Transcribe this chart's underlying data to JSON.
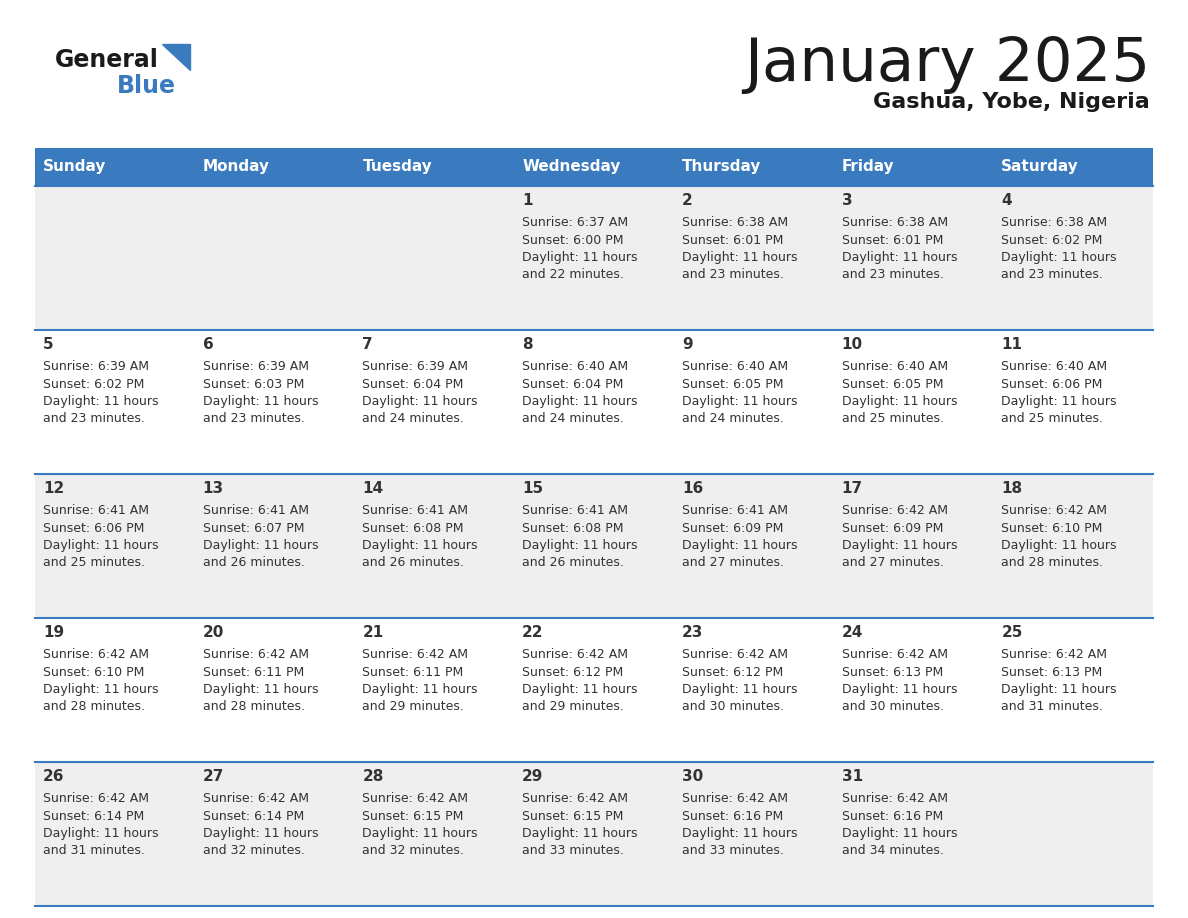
{
  "title": "January 2025",
  "subtitle": "Gashua, Yobe, Nigeria",
  "header_bg": "#3a7abf",
  "header_text": "#ffffff",
  "day_names": [
    "Sunday",
    "Monday",
    "Tuesday",
    "Wednesday",
    "Thursday",
    "Friday",
    "Saturday"
  ],
  "row_bg_odd": "#efefef",
  "row_bg_even": "#ffffff",
  "separator_color": "#3a7abf",
  "cell_text_color": "#333333",
  "day_number_color": "#333333",
  "logo_general_color": "#1a1a1a",
  "logo_blue_color": "#3a7abf",
  "title_color": "#1a1a1a",
  "subtitle_color": "#1a1a1a",
  "calendar": [
    [
      {
        "day": null,
        "sunrise": null,
        "sunset": null,
        "daylight_hours": null,
        "daylight_minutes": null
      },
      {
        "day": null,
        "sunrise": null,
        "sunset": null,
        "daylight_hours": null,
        "daylight_minutes": null
      },
      {
        "day": null,
        "sunrise": null,
        "sunset": null,
        "daylight_hours": null,
        "daylight_minutes": null
      },
      {
        "day": 1,
        "sunrise": "6:37 AM",
        "sunset": "6:00 PM",
        "daylight_hours": 11,
        "daylight_minutes": 22
      },
      {
        "day": 2,
        "sunrise": "6:38 AM",
        "sunset": "6:01 PM",
        "daylight_hours": 11,
        "daylight_minutes": 23
      },
      {
        "day": 3,
        "sunrise": "6:38 AM",
        "sunset": "6:01 PM",
        "daylight_hours": 11,
        "daylight_minutes": 23
      },
      {
        "day": 4,
        "sunrise": "6:38 AM",
        "sunset": "6:02 PM",
        "daylight_hours": 11,
        "daylight_minutes": 23
      }
    ],
    [
      {
        "day": 5,
        "sunrise": "6:39 AM",
        "sunset": "6:02 PM",
        "daylight_hours": 11,
        "daylight_minutes": 23
      },
      {
        "day": 6,
        "sunrise": "6:39 AM",
        "sunset": "6:03 PM",
        "daylight_hours": 11,
        "daylight_minutes": 23
      },
      {
        "day": 7,
        "sunrise": "6:39 AM",
        "sunset": "6:04 PM",
        "daylight_hours": 11,
        "daylight_minutes": 24
      },
      {
        "day": 8,
        "sunrise": "6:40 AM",
        "sunset": "6:04 PM",
        "daylight_hours": 11,
        "daylight_minutes": 24
      },
      {
        "day": 9,
        "sunrise": "6:40 AM",
        "sunset": "6:05 PM",
        "daylight_hours": 11,
        "daylight_minutes": 24
      },
      {
        "day": 10,
        "sunrise": "6:40 AM",
        "sunset": "6:05 PM",
        "daylight_hours": 11,
        "daylight_minutes": 25
      },
      {
        "day": 11,
        "sunrise": "6:40 AM",
        "sunset": "6:06 PM",
        "daylight_hours": 11,
        "daylight_minutes": 25
      }
    ],
    [
      {
        "day": 12,
        "sunrise": "6:41 AM",
        "sunset": "6:06 PM",
        "daylight_hours": 11,
        "daylight_minutes": 25
      },
      {
        "day": 13,
        "sunrise": "6:41 AM",
        "sunset": "6:07 PM",
        "daylight_hours": 11,
        "daylight_minutes": 26
      },
      {
        "day": 14,
        "sunrise": "6:41 AM",
        "sunset": "6:08 PM",
        "daylight_hours": 11,
        "daylight_minutes": 26
      },
      {
        "day": 15,
        "sunrise": "6:41 AM",
        "sunset": "6:08 PM",
        "daylight_hours": 11,
        "daylight_minutes": 26
      },
      {
        "day": 16,
        "sunrise": "6:41 AM",
        "sunset": "6:09 PM",
        "daylight_hours": 11,
        "daylight_minutes": 27
      },
      {
        "day": 17,
        "sunrise": "6:42 AM",
        "sunset": "6:09 PM",
        "daylight_hours": 11,
        "daylight_minutes": 27
      },
      {
        "day": 18,
        "sunrise": "6:42 AM",
        "sunset": "6:10 PM",
        "daylight_hours": 11,
        "daylight_minutes": 28
      }
    ],
    [
      {
        "day": 19,
        "sunrise": "6:42 AM",
        "sunset": "6:10 PM",
        "daylight_hours": 11,
        "daylight_minutes": 28
      },
      {
        "day": 20,
        "sunrise": "6:42 AM",
        "sunset": "6:11 PM",
        "daylight_hours": 11,
        "daylight_minutes": 28
      },
      {
        "day": 21,
        "sunrise": "6:42 AM",
        "sunset": "6:11 PM",
        "daylight_hours": 11,
        "daylight_minutes": 29
      },
      {
        "day": 22,
        "sunrise": "6:42 AM",
        "sunset": "6:12 PM",
        "daylight_hours": 11,
        "daylight_minutes": 29
      },
      {
        "day": 23,
        "sunrise": "6:42 AM",
        "sunset": "6:12 PM",
        "daylight_hours": 11,
        "daylight_minutes": 30
      },
      {
        "day": 24,
        "sunrise": "6:42 AM",
        "sunset": "6:13 PM",
        "daylight_hours": 11,
        "daylight_minutes": 30
      },
      {
        "day": 25,
        "sunrise": "6:42 AM",
        "sunset": "6:13 PM",
        "daylight_hours": 11,
        "daylight_minutes": 31
      }
    ],
    [
      {
        "day": 26,
        "sunrise": "6:42 AM",
        "sunset": "6:14 PM",
        "daylight_hours": 11,
        "daylight_minutes": 31
      },
      {
        "day": 27,
        "sunrise": "6:42 AM",
        "sunset": "6:14 PM",
        "daylight_hours": 11,
        "daylight_minutes": 32
      },
      {
        "day": 28,
        "sunrise": "6:42 AM",
        "sunset": "6:15 PM",
        "daylight_hours": 11,
        "daylight_minutes": 32
      },
      {
        "day": 29,
        "sunrise": "6:42 AM",
        "sunset": "6:15 PM",
        "daylight_hours": 11,
        "daylight_minutes": 33
      },
      {
        "day": 30,
        "sunrise": "6:42 AM",
        "sunset": "6:16 PM",
        "daylight_hours": 11,
        "daylight_minutes": 33
      },
      {
        "day": 31,
        "sunrise": "6:42 AM",
        "sunset": "6:16 PM",
        "daylight_hours": 11,
        "daylight_minutes": 34
      },
      {
        "day": null,
        "sunrise": null,
        "sunset": null,
        "daylight_hours": null,
        "daylight_minutes": null
      }
    ]
  ]
}
